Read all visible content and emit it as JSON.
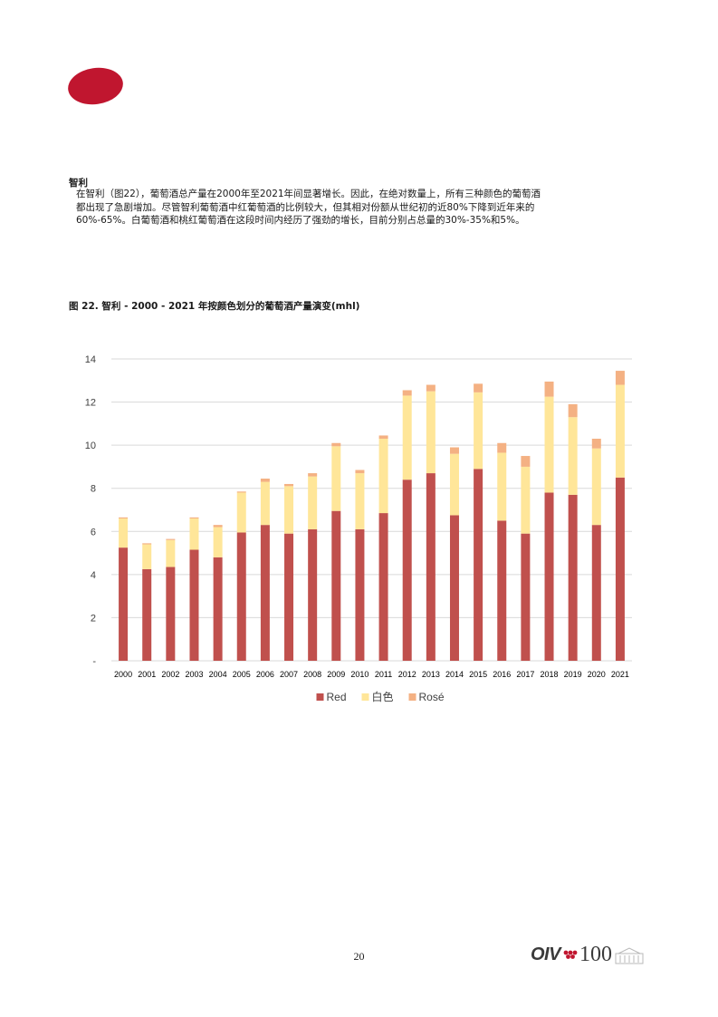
{
  "section": {
    "title": "智利",
    "paragraph": "在智利（图22），葡萄酒总产量在2000年至2021年间显著增长。因此，在绝对数量上，所有三种颜色的葡萄酒都出现了急剧增加。尽管智利葡萄酒中红葡萄酒的比例较大，但其相对份额从世纪初的近80%下降到近年来的60%-65%。白葡萄酒和桃红葡萄酒在这段时间内经历了强劲的增长，目前分别占总量的30%-35%和5%。"
  },
  "figure": {
    "caption": "图 22. 智利 - 2000 - 2021 年按颜色划分的葡萄酒产量演变(mhl)"
  },
  "chart_data": {
    "type": "bar",
    "stacked": true,
    "categories": [
      "2000",
      "2001",
      "2002",
      "2003",
      "2004",
      "2005",
      "2006",
      "2007",
      "2008",
      "2009",
      "2010",
      "2011",
      "2012",
      "2013",
      "2014",
      "2015",
      "2016",
      "2017",
      "2018",
      "2019",
      "2020",
      "2021"
    ],
    "series": [
      {
        "name": "Red",
        "color": "#c0504d",
        "values": [
          5.25,
          4.25,
          4.35,
          5.15,
          4.8,
          5.95,
          6.3,
          5.9,
          6.1,
          6.95,
          6.1,
          6.85,
          8.4,
          8.7,
          6.75,
          8.9,
          6.5,
          5.9,
          7.8,
          7.7,
          6.3,
          8.5
        ]
      },
      {
        "name": "白色",
        "color": "#ffe699",
        "values": [
          1.35,
          1.15,
          1.25,
          1.45,
          1.4,
          1.85,
          2.0,
          2.2,
          2.45,
          3.0,
          2.6,
          3.45,
          3.9,
          3.8,
          2.85,
          3.55,
          3.15,
          3.1,
          4.45,
          3.6,
          3.55,
          4.3
        ]
      },
      {
        "name": "Rosé",
        "color": "#f4b183",
        "values": [
          0.05,
          0.05,
          0.05,
          0.05,
          0.1,
          0.05,
          0.15,
          0.1,
          0.15,
          0.15,
          0.15,
          0.15,
          0.25,
          0.3,
          0.3,
          0.4,
          0.45,
          0.5,
          0.7,
          0.6,
          0.45,
          0.65
        ]
      }
    ],
    "y_ticks": [
      "-",
      "2",
      "4",
      "6",
      "8",
      "10",
      "12",
      "14"
    ],
    "ylim": [
      0,
      14
    ],
    "grid": true,
    "legend_position": "bottom"
  },
  "footer": {
    "page_number": "20",
    "brand_oiv": "OIV",
    "brand_100": "100"
  }
}
